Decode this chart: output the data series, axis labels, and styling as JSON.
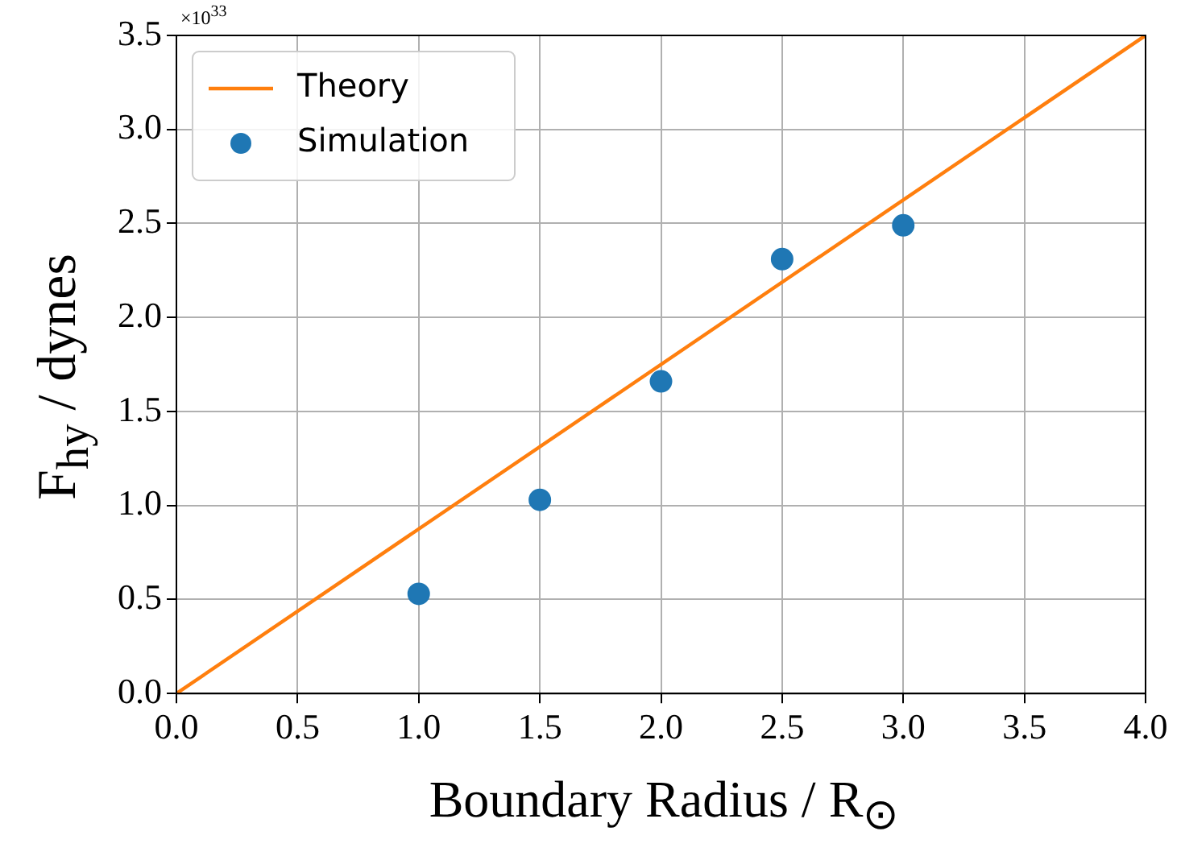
{
  "chart_data": {
    "type": "scatter",
    "xlabel": "Boundary Radius / R$_{⊙}$",
    "ylabel": "F$_{hy}$ / dynes",
    "annotations": [
      "×10$^{33}$"
    ],
    "series": [
      {
        "name": "Theory",
        "type": "line",
        "color": "#ff7f0e",
        "x": [
          0,
          4
        ],
        "values": [
          0,
          3.5
        ],
        "marker": "none"
      },
      {
        "name": "Simulation",
        "type": "scatter",
        "color": "#1f77b4",
        "x": [
          1,
          1.5,
          2,
          2.5,
          3
        ],
        "values": [
          0.53,
          1.03,
          1.66,
          2.31,
          2.49
        ],
        "marker": "circle"
      }
    ],
    "xlim": [
      0,
      4
    ],
    "ylim": [
      0,
      3.5
    ],
    "xticks": [
      {
        "value": 0,
        "label": "0.0"
      },
      {
        "value": 0.5,
        "label": "0.5"
      },
      {
        "value": 1,
        "label": "1.0"
      },
      {
        "value": 1.5,
        "label": "1.5"
      },
      {
        "value": 2,
        "label": "2.0"
      },
      {
        "value": 2.5,
        "label": "2.5"
      },
      {
        "value": 3,
        "label": "3.0"
      },
      {
        "value": 3.5,
        "label": "3.5"
      },
      {
        "value": 4,
        "label": "4.0"
      }
    ],
    "yticks": [
      {
        "value": 0,
        "label": "0.0"
      },
      {
        "value": 0.5,
        "label": "0.5"
      },
      {
        "value": 1,
        "label": "1.0"
      },
      {
        "value": 1.5,
        "label": "1.5"
      },
      {
        "value": 2,
        "label": "2.0"
      },
      {
        "value": 2.5,
        "label": "2.5"
      },
      {
        "value": 3,
        "label": "3.0"
      },
      {
        "value": 3.5,
        "label": "3.5"
      }
    ],
    "grid": true,
    "legend": "top left"
  }
}
